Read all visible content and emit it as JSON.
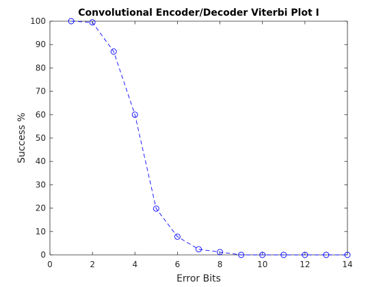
{
  "chart_data": {
    "type": "line",
    "title": "Convolutional Encoder/Decoder Viterbi Plot I",
    "xlabel": "Error Bits",
    "ylabel": "Success %",
    "xlim": [
      0,
      14
    ],
    "ylim": [
      0,
      100
    ],
    "xticks": [
      0,
      2,
      4,
      6,
      8,
      10,
      12,
      14
    ],
    "yticks": [
      0,
      10,
      20,
      30,
      40,
      50,
      60,
      70,
      80,
      90,
      100
    ],
    "grid": false,
    "series": [
      {
        "line_style": "dashed",
        "marker": "circle",
        "color": "#0000ff",
        "x": [
          1,
          2,
          3,
          4,
          5,
          6,
          7,
          8,
          9,
          10,
          11,
          12,
          13,
          14
        ],
        "y": [
          100,
          99.5,
          87,
          60,
          19.8,
          7.8,
          2.4,
          1.2,
          0,
          0,
          0,
          0,
          0,
          0
        ]
      }
    ]
  }
}
